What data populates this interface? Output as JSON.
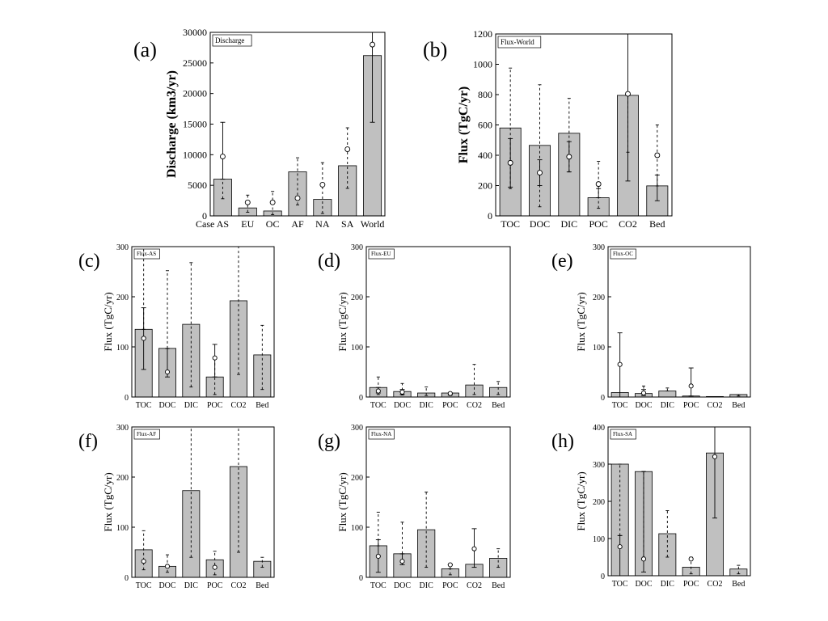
{
  "chart_data": [
    {
      "id": "a",
      "panel_label": "(a)",
      "type": "bar",
      "legend": "Discharge",
      "ylabel": "Discharge (km3/yr)",
      "x_axis_prefix": "Case",
      "categories": [
        "AS",
        "EU",
        "OC",
        "AF",
        "NA",
        "SA",
        "World"
      ],
      "values": [
        6000,
        1300,
        800,
        7200,
        2700,
        8200,
        26200
      ],
      "ylim": [
        0,
        30000
      ],
      "yticks": [
        0,
        5000,
        10000,
        15000,
        20000,
        25000,
        30000
      ],
      "solid_error": [
        [
          6000,
          15300
        ],
        [
          1300,
          1300
        ],
        [
          800,
          800
        ],
        [
          7200,
          7200
        ],
        [
          2700,
          2700
        ],
        [
          8200,
          8200
        ],
        [
          15300,
          30000
        ]
      ],
      "dashed_error": [
        [
          2800,
          6000
        ],
        [
          600,
          3400
        ],
        [
          200,
          4000
        ],
        [
          1800,
          9500
        ],
        [
          400,
          8700
        ],
        [
          4500,
          14400
        ],
        [
          26200,
          26200
        ]
      ],
      "markers": [
        9700,
        2200,
        2200,
        2900,
        5100,
        10900,
        28000
      ]
    },
    {
      "id": "b",
      "panel_label": "(b)",
      "type": "bar",
      "legend": "Flux-World",
      "ylabel": "Flux (TgC/yr)",
      "categories": [
        "TOC",
        "DOC",
        "DIC",
        "POC",
        "CO2",
        "Bed"
      ],
      "values": [
        580,
        465,
        545,
        120,
        795,
        198
      ],
      "ylim": [
        0,
        1200
      ],
      "yticks": [
        0,
        200,
        400,
        600,
        800,
        1000,
        1200
      ],
      "solid_error": [
        [
          190,
          510
        ],
        [
          200,
          370
        ],
        [
          290,
          490
        ],
        [
          120,
          180
        ],
        [
          230,
          1200
        ],
        [
          100,
          270
        ]
      ],
      "dashed_error": [
        [
          180,
          975
        ],
        [
          60,
          865
        ],
        [
          290,
          775
        ],
        [
          50,
          360
        ],
        [
          420,
          795
        ],
        [
          198,
          600
        ]
      ],
      "markers": [
        350,
        285,
        390,
        210,
        805,
        400
      ]
    },
    {
      "id": "c",
      "panel_label": "(c)",
      "type": "bar",
      "legend": "Flux-AS",
      "ylabel": "Flux (TgC/yr)",
      "categories": [
        "TOC",
        "DOC",
        "DIC",
        "POC",
        "CO2",
        "Bed"
      ],
      "values": [
        135,
        97,
        145,
        40,
        192,
        84
      ],
      "ylim": [
        0,
        300
      ],
      "yticks": [
        0,
        100,
        200,
        300
      ],
      "solid_error": [
        [
          55,
          178
        ],
        [
          40,
          97
        ],
        [
          145,
          145
        ],
        [
          40,
          105
        ],
        [
          192,
          192
        ],
        [
          84,
          84
        ]
      ],
      "dashed_error": [
        [
          135,
          300
        ],
        [
          97,
          252
        ],
        [
          20,
          268
        ],
        [
          5,
          78
        ],
        [
          45,
          300
        ],
        [
          15,
          143
        ]
      ],
      "markers": [
        117,
        50,
        null,
        78,
        null,
        null
      ]
    },
    {
      "id": "d",
      "panel_label": "(d)",
      "type": "bar",
      "legend": "Flux-EU",
      "ylabel": "Flux (TgC/yr)",
      "categories": [
        "TOC",
        "DOC",
        "DIC",
        "POC",
        "CO2",
        "Bed"
      ],
      "values": [
        19,
        11,
        8,
        8,
        24,
        19
      ],
      "ylim": [
        0,
        300
      ],
      "yticks": [
        0,
        100,
        200,
        300
      ],
      "solid_error": [
        [
          8,
          19
        ],
        [
          5,
          15
        ],
        [
          8,
          8
        ],
        [
          4,
          8
        ],
        [
          24,
          24
        ],
        [
          19,
          19
        ]
      ],
      "dashed_error": [
        [
          5,
          40
        ],
        [
          4,
          27
        ],
        [
          3,
          20
        ],
        [
          3,
          10
        ],
        [
          5,
          65
        ],
        [
          5,
          31
        ]
      ],
      "markers": [
        12,
        10,
        null,
        7,
        null,
        null
      ]
    },
    {
      "id": "e",
      "panel_label": "(e)",
      "type": "bar",
      "legend": "Flux-OC",
      "ylabel": "Flux (TgC/yr)",
      "categories": [
        "TOC",
        "DOC",
        "DIC",
        "POC",
        "CO2",
        "Bed"
      ],
      "values": [
        9,
        7,
        12,
        2,
        1,
        5
      ],
      "ylim": [
        0,
        300
      ],
      "yticks": [
        0,
        100,
        200,
        300
      ],
      "solid_error": [
        [
          0,
          128
        ],
        [
          3,
          15
        ],
        [
          12,
          12
        ],
        [
          2,
          58
        ],
        [
          1,
          1
        ],
        [
          5,
          5
        ]
      ],
      "dashed_error": [
        [
          9,
          9
        ],
        [
          7,
          22
        ],
        [
          12,
          18
        ],
        [
          2,
          2
        ],
        [
          1,
          1
        ],
        [
          2,
          5
        ]
      ],
      "markers": [
        65,
        8,
        null,
        22,
        null,
        null
      ]
    },
    {
      "id": "f",
      "panel_label": "(f)",
      "type": "bar",
      "legend": "Flux-AF",
      "ylabel": "Flux (TgC/yr)",
      "categories": [
        "TOC",
        "DOC",
        "DIC",
        "POC",
        "CO2",
        "Bed"
      ],
      "values": [
        55,
        22,
        173,
        35,
        221,
        32
      ],
      "ylim": [
        0,
        300
      ],
      "yticks": [
        0,
        100,
        200,
        300
      ],
      "solid_error": [
        [
          55,
          55
        ],
        [
          22,
          22
        ],
        [
          173,
          173
        ],
        [
          35,
          35
        ],
        [
          221,
          221
        ],
        [
          32,
          32
        ]
      ],
      "dashed_error": [
        [
          15,
          93
        ],
        [
          10,
          45
        ],
        [
          40,
          300
        ],
        [
          5,
          52
        ],
        [
          50,
          300
        ],
        [
          20,
          40
        ]
      ],
      "markers": [
        32,
        22,
        null,
        20,
        null,
        null
      ]
    },
    {
      "id": "g",
      "panel_label": "(g)",
      "type": "bar",
      "legend": "Flux-NA",
      "ylabel": "Flux (TgC/yr)",
      "categories": [
        "TOC",
        "DOC",
        "DIC",
        "POC",
        "CO2",
        "Bed"
      ],
      "values": [
        63,
        47,
        95,
        17,
        26,
        38
      ],
      "ylim": [
        0,
        300
      ],
      "yticks": [
        0,
        100,
        200,
        300
      ],
      "solid_error": [
        [
          10,
          75
        ],
        [
          25,
          47
        ],
        [
          95,
          95
        ],
        [
          17,
          25
        ],
        [
          20,
          97
        ],
        [
          38,
          38
        ]
      ],
      "dashed_error": [
        [
          63,
          130
        ],
        [
          47,
          110
        ],
        [
          20,
          170
        ],
        [
          5,
          17
        ],
        [
          26,
          26
        ],
        [
          20,
          57
        ]
      ],
      "markers": [
        42,
        32,
        null,
        25,
        57,
        null
      ]
    },
    {
      "id": "h",
      "panel_label": "(h)",
      "type": "bar",
      "legend": "Flux-SA",
      "ylabel": "Flux (TgC/yr)",
      "categories": [
        "TOC",
        "DOC",
        "DIC",
        "POC",
        "CO2",
        "Bed"
      ],
      "values": [
        300,
        280,
        113,
        23,
        330,
        18
      ],
      "ylim": [
        0,
        400
      ],
      "yticks": [
        0,
        100,
        200,
        300,
        400
      ],
      "solid_error": [
        [
          0,
          108
        ],
        [
          10,
          280
        ],
        [
          113,
          113
        ],
        [
          23,
          23
        ],
        [
          155,
          400
        ],
        [
          18,
          18
        ]
      ],
      "dashed_error": [
        [
          108,
          300
        ],
        [
          50,
          280
        ],
        [
          50,
          175
        ],
        [
          5,
          50
        ],
        [
          330,
          330
        ],
        [
          5,
          28
        ]
      ],
      "markers": [
        78,
        45,
        null,
        45,
        320,
        null
      ]
    }
  ]
}
